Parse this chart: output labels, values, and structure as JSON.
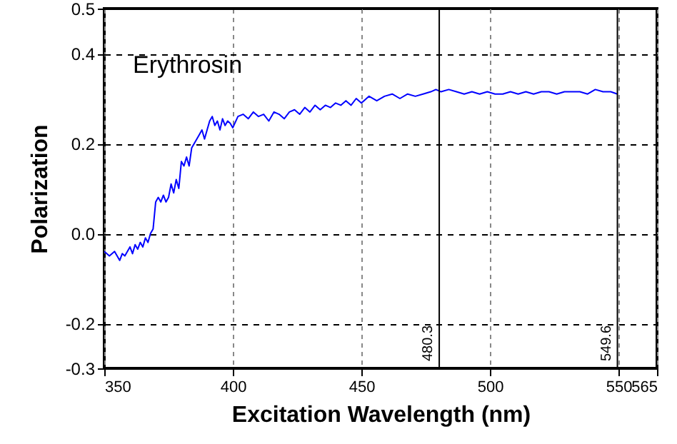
{
  "chart_data": {
    "type": "line",
    "xlabel": "Excitation Wavelength (nm)",
    "ylabel": "Polarization",
    "annotations": [
      "Erythrosin"
    ],
    "series": [
      {
        "color": "#0000ff",
        "x": [
          350,
          352,
          354,
          356,
          357,
          358,
          360,
          361,
          362,
          363,
          364,
          365,
          366,
          367,
          368,
          369,
          370,
          371,
          372,
          373,
          374,
          375,
          376,
          377,
          378,
          379,
          380,
          381,
          382,
          383,
          384,
          385,
          386,
          387,
          388,
          389,
          390,
          391,
          392,
          393,
          394,
          395,
          396,
          397,
          398,
          399,
          400,
          402,
          404,
          406,
          408,
          410,
          412,
          414,
          416,
          418,
          420,
          422,
          424,
          426,
          428,
          430,
          432,
          434,
          436,
          438,
          440,
          442,
          444,
          446,
          448,
          450,
          453,
          456,
          459,
          462,
          465,
          468,
          471,
          474,
          477,
          479,
          481,
          484,
          487,
          490,
          493,
          496,
          499,
          502,
          505,
          508,
          511,
          514,
          517,
          520,
          523,
          526,
          529,
          532,
          535,
          538,
          541,
          544,
          547,
          549.6
        ],
        "values": [
          -0.04,
          -0.05,
          -0.04,
          -0.06,
          -0.045,
          -0.05,
          -0.03,
          -0.045,
          -0.025,
          -0.035,
          -0.02,
          -0.03,
          -0.01,
          -0.02,
          0.0,
          0.01,
          0.07,
          0.08,
          0.07,
          0.085,
          0.07,
          0.08,
          0.11,
          0.09,
          0.12,
          0.1,
          0.16,
          0.15,
          0.17,
          0.15,
          0.19,
          0.2,
          0.21,
          0.22,
          0.23,
          0.21,
          0.23,
          0.25,
          0.26,
          0.24,
          0.25,
          0.23,
          0.255,
          0.24,
          0.25,
          0.245,
          0.235,
          0.26,
          0.265,
          0.255,
          0.27,
          0.26,
          0.265,
          0.25,
          0.27,
          0.265,
          0.255,
          0.27,
          0.275,
          0.265,
          0.28,
          0.27,
          0.285,
          0.275,
          0.285,
          0.28,
          0.29,
          0.285,
          0.295,
          0.285,
          0.3,
          0.29,
          0.305,
          0.295,
          0.305,
          0.31,
          0.3,
          0.31,
          0.305,
          0.31,
          0.315,
          0.32,
          0.315,
          0.32,
          0.315,
          0.31,
          0.315,
          0.31,
          0.315,
          0.31,
          0.31,
          0.315,
          0.31,
          0.315,
          0.31,
          0.315,
          0.315,
          0.31,
          0.315,
          0.315,
          0.315,
          0.31,
          0.32,
          0.315,
          0.315,
          0.31
        ]
      }
    ],
    "xlim": [
      350,
      565
    ],
    "xticks": [
      350,
      400,
      450,
      500,
      550,
      565
    ],
    "ylim": [
      -0.3,
      0.5
    ],
    "yticks": [
      -0.3,
      -0.2,
      {
        "value": 0,
        "label": "0.0"
      },
      0.2,
      0.4,
      0.5
    ],
    "grid": true,
    "line_style": "solid",
    "ref_lines": [
      {
        "axis": "x",
        "value": 480.3,
        "label": "480.3",
        "color": "#000000"
      },
      {
        "axis": "x",
        "value": 549.6,
        "label": "549.6",
        "color": "#000000"
      }
    ]
  }
}
